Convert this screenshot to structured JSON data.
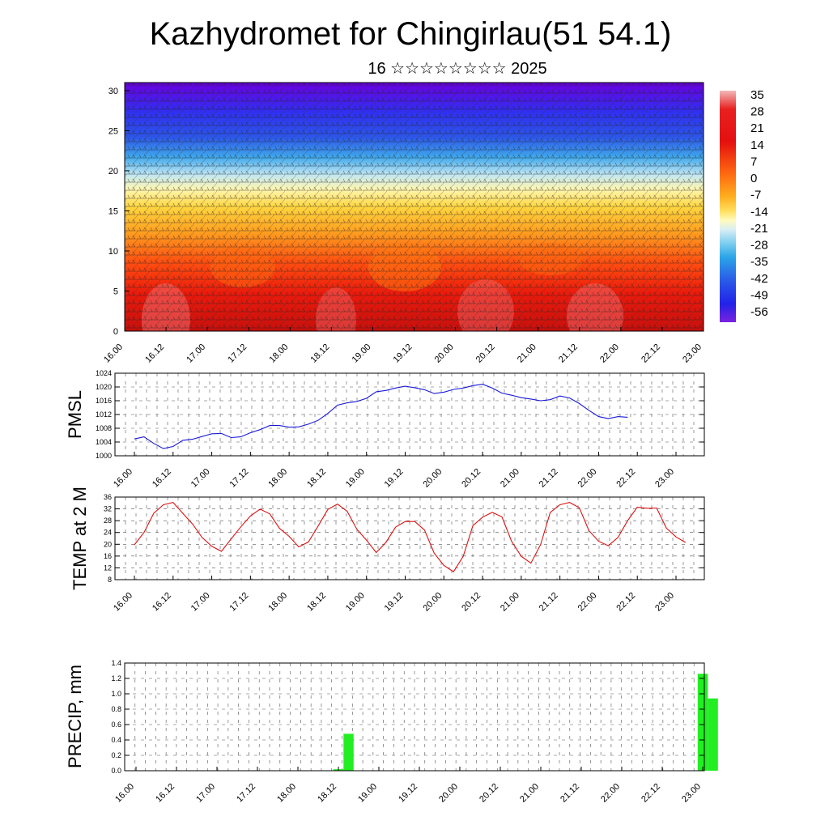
{
  "header": {
    "title": "Kazhydromet for Chingirlau(51 54.1)",
    "subtitle": "16 ☆☆☆☆☆☆☆☆ 2025"
  },
  "x_labels": [
    "16.00",
    "16.12",
    "17.00",
    "17.12",
    "18.00",
    "18.12",
    "19.00",
    "19.12",
    "20.00",
    "20.12",
    "21.00",
    "21.12",
    "22.00",
    "22.12",
    "23.00"
  ],
  "chart_data": [
    {
      "type": "heatmap",
      "name": "vertical-section",
      "ylim": [
        0,
        31
      ],
      "yticks": [
        0,
        5,
        10,
        15,
        20,
        25,
        30
      ],
      "colorbar": {
        "labels": [
          "35",
          "28",
          "21",
          "14",
          "7",
          "0",
          "-7",
          "-14",
          "-21",
          "-28",
          "-35",
          "-42",
          "-49",
          "-56"
        ],
        "range": [
          -60,
          38
        ]
      }
    },
    {
      "type": "line",
      "name": "pmsl",
      "ylabel": "PMSL",
      "color": "#1a1ad8",
      "ylim": [
        1000,
        1024
      ],
      "yticks": [
        1000,
        1004,
        1008,
        1012,
        1016,
        1020,
        1024
      ],
      "x_step_hours": 3,
      "values": [
        1004.9,
        1005.5,
        1003.6,
        1002.1,
        1002.7,
        1004.5,
        1004.8,
        1005.6,
        1006.4,
        1006.5,
        1005.3,
        1005.5,
        1006.7,
        1007.6,
        1008.8,
        1008.8,
        1008.3,
        1008.4,
        1009.2,
        1010.3,
        1012.3,
        1014.7,
        1015.4,
        1015.8,
        1016.7,
        1018.6,
        1019.0,
        1019.7,
        1020.2,
        1019.8,
        1019.2,
        1018.1,
        1018.5,
        1019.3,
        1019.7,
        1020.4,
        1020.8,
        1019.7,
        1018.2,
        1017.6,
        1016.9,
        1016.5,
        1016.0,
        1016.3,
        1017.4,
        1016.8,
        1015.2,
        1013.2,
        1011.4,
        1010.8,
        1011.4,
        1011.2
      ]
    },
    {
      "type": "line",
      "name": "temp-2m",
      "ylabel": "TEMP at 2 M",
      "color": "#dd1111",
      "ylim": [
        8,
        36
      ],
      "yticks": [
        8,
        12,
        16,
        20,
        24,
        28,
        32,
        36
      ],
      "x_step_hours": 3,
      "values": [
        19.8,
        24.0,
        30.5,
        33.4,
        34.2,
        30.5,
        26.9,
        22.3,
        19.3,
        17.6,
        21.8,
        25.9,
        29.6,
        31.9,
        30.3,
        25.4,
        22.7,
        19.1,
        20.8,
        26.2,
        31.8,
        33.6,
        31.2,
        25.1,
        21.4,
        17.2,
        20.6,
        25.8,
        27.7,
        27.7,
        24.8,
        17.0,
        12.8,
        10.7,
        15.9,
        26.3,
        29.2,
        30.8,
        29.3,
        21.0,
        15.9,
        13.6,
        19.9,
        30.8,
        33.4,
        34.2,
        32.4,
        24.6,
        21.0,
        19.5,
        22.3,
        28.0,
        32.6,
        32.2,
        32.3,
        25.5,
        22.5,
        20.6
      ]
    },
    {
      "type": "bar",
      "name": "precip",
      "ylabel": "PRECIP, mm",
      "color": "#22ee22",
      "ylim": [
        0,
        1.4
      ],
      "yticks": [
        "0.0",
        "0.2",
        "0.4",
        "0.6",
        "0.8",
        "1.0",
        "1.2",
        "1.4"
      ],
      "x_step_hours": 3,
      "values": [
        0,
        0,
        0,
        0,
        0,
        0,
        0,
        0,
        0,
        0,
        0,
        0,
        0,
        0,
        0,
        0,
        0,
        0,
        0,
        0,
        0.02,
        0.48,
        0,
        0,
        0,
        0,
        0,
        0,
        0,
        0,
        0,
        0,
        0,
        0,
        0,
        0,
        0,
        0,
        0,
        0,
        0,
        0,
        0,
        0,
        0,
        0,
        0,
        0,
        0,
        0,
        0,
        0,
        0,
        0,
        0,
        0,
        1.26,
        0.94
      ]
    }
  ]
}
